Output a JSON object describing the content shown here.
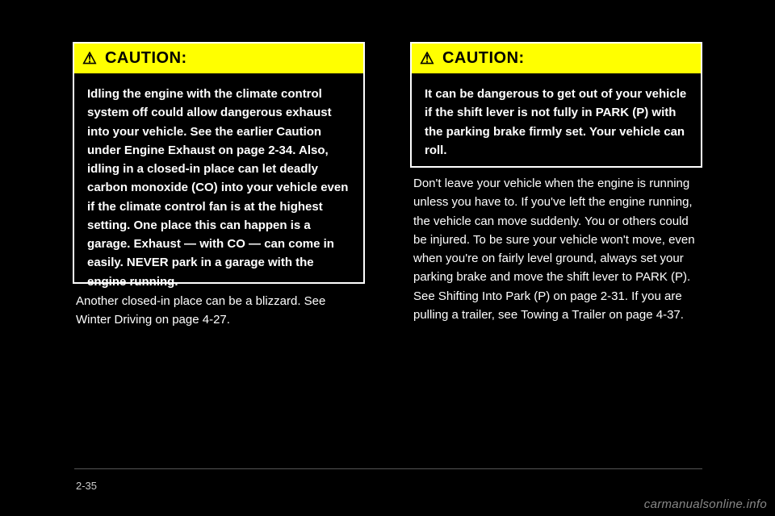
{
  "caution_label": "CAUTION:",
  "left_box": {
    "body": "Idling the engine with the climate control system off could allow dangerous exhaust into your vehicle. See the earlier Caution under Engine Exhaust on page 2-34.\nAlso, idling in a closed-in place can let deadly carbon monoxide (CO) into your vehicle even if the climate control fan is at the highest setting. One place this can happen is a garage. Exhaust — with CO — can come in easily. NEVER park in a garage with the engine running."
  },
  "right_box": {
    "body": "It can be dangerous to get out of your vehicle if the shift lever is not fully in PARK (P) with the parking brake firmly set. Your vehicle can roll."
  },
  "text_left": "Another closed-in place can be a blizzard. See Winter Driving on page 4-27.",
  "text_right": "Don't leave your vehicle when the engine is running unless you have to. If you've left the engine running, the vehicle can move suddenly. You or others could be injured. To be sure your vehicle won't move, even when you're on fairly level ground, always set your parking brake and move the shift lever to PARK (P).\nSee Shifting Into Park (P) on page 2-31. If you are pulling a trailer, see Towing a Trailer on page 4-37.",
  "page_number": "2-35",
  "watermark": "carmanualsonline.info",
  "colors": {
    "background": "#000000",
    "caution_bg": "#ffff00",
    "text": "#ffffff"
  }
}
